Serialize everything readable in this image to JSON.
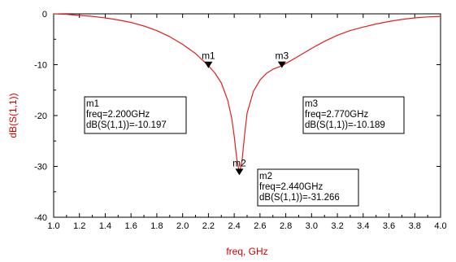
{
  "chart_data": {
    "type": "line",
    "xlabel": "freq, GHz",
    "ylabel": "dB(S(1,1))",
    "xlim": [
      1.0,
      4.0
    ],
    "ylim": [
      -40,
      0
    ],
    "x_ticks": [
      "1.0",
      "1.2",
      "1.4",
      "1.6",
      "1.8",
      "2.0",
      "2.2",
      "2.4",
      "2.6",
      "2.8",
      "3.0",
      "3.2",
      "3.4",
      "3.6",
      "3.8",
      "4.0"
    ],
    "y_ticks": [
      "0",
      "-10",
      "-20",
      "-30",
      "-40"
    ],
    "grid": false,
    "line_color": "#e02020",
    "marker_color": "#000000",
    "series": [
      {
        "x": [
          1.0,
          1.1,
          1.2,
          1.3,
          1.4,
          1.5,
          1.6,
          1.7,
          1.8,
          1.9,
          2.0,
          2.1,
          2.2,
          2.25,
          2.3,
          2.35,
          2.38,
          2.4,
          2.42,
          2.44,
          2.46,
          2.48,
          2.5,
          2.55,
          2.6,
          2.65,
          2.7,
          2.77,
          2.9,
          3.0,
          3.1,
          3.2,
          3.3,
          3.4,
          3.5,
          3.6,
          3.7,
          3.8,
          3.9,
          4.0
        ],
        "y": [
          0.0,
          -0.1,
          -0.3,
          -0.5,
          -0.8,
          -1.2,
          -1.7,
          -2.4,
          -3.3,
          -4.5,
          -6.0,
          -7.8,
          -10.2,
          -11.6,
          -13.6,
          -17.0,
          -20.5,
          -24.0,
          -28.5,
          -31.3,
          -29.0,
          -24.0,
          -19.5,
          -15.2,
          -13.0,
          -11.7,
          -10.9,
          -10.2,
          -8.3,
          -6.8,
          -5.4,
          -4.2,
          -3.3,
          -2.6,
          -2.0,
          -1.5,
          -1.1,
          -0.8,
          -0.6,
          -0.5
        ]
      }
    ],
    "markers": [
      {
        "name": "m1",
        "x": 2.2,
        "y": -10.197,
        "lines": [
          "m1",
          "freq=2.200GHz",
          "dB(S(1,1))=-10.197"
        ]
      },
      {
        "name": "m2",
        "x": 2.44,
        "y": -31.266,
        "lines": [
          "m2",
          "freq=2.440GHz",
          "dB(S(1,1))=-31.266"
        ]
      },
      {
        "name": "m3",
        "x": 2.77,
        "y": -10.189,
        "lines": [
          "m3",
          "freq=2.770GHz",
          "dB(S(1,1))=-10.189"
        ]
      }
    ]
  }
}
